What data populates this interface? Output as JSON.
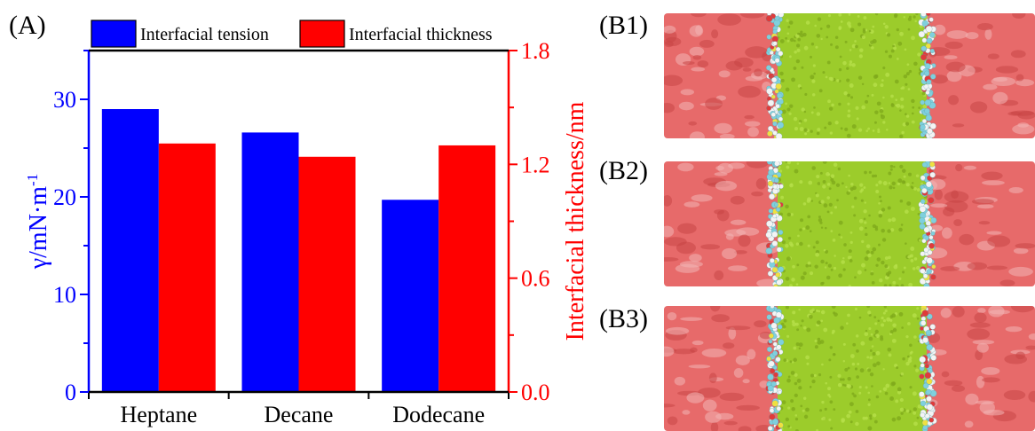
{
  "panel_a_label": "(A)",
  "panel_b_labels": [
    "(B1)",
    "(B2)",
    "(B3)"
  ],
  "colors": {
    "tension": "#0000ff",
    "thickness": "#ff0000",
    "axis_black": "#000000",
    "surface_red": "#e76a6a",
    "surface_light": "#f3b5b5",
    "oil_green": "#9ccc2b",
    "surfactant_cyan": "#7fd0dd"
  },
  "chart_data": {
    "type": "bar",
    "categories": [
      "Heptane",
      "Decane",
      "Dodecane"
    ],
    "series": [
      {
        "name": "Interfacial tension",
        "axis": "left",
        "color": "#0000ff",
        "values": [
          29.0,
          26.6,
          19.7
        ]
      },
      {
        "name": "Interfacial thickness",
        "axis": "right",
        "color": "#ff0000",
        "values": [
          1.31,
          1.24,
          1.3
        ]
      }
    ],
    "ylabel_left": "γ/mN·m",
    "ylabel_left_sup": "-1",
    "ylabel_right": "Interfacial thickness/nm",
    "ylim_left": [
      0,
      35
    ],
    "ylim_right": [
      0,
      1.8
    ],
    "yticks_left": [
      "0",
      "10",
      "20",
      "30"
    ],
    "yticks_right": [
      "0.0",
      "0.6",
      "1.2",
      "1.8"
    ],
    "grid": false,
    "legend_position": "top"
  }
}
